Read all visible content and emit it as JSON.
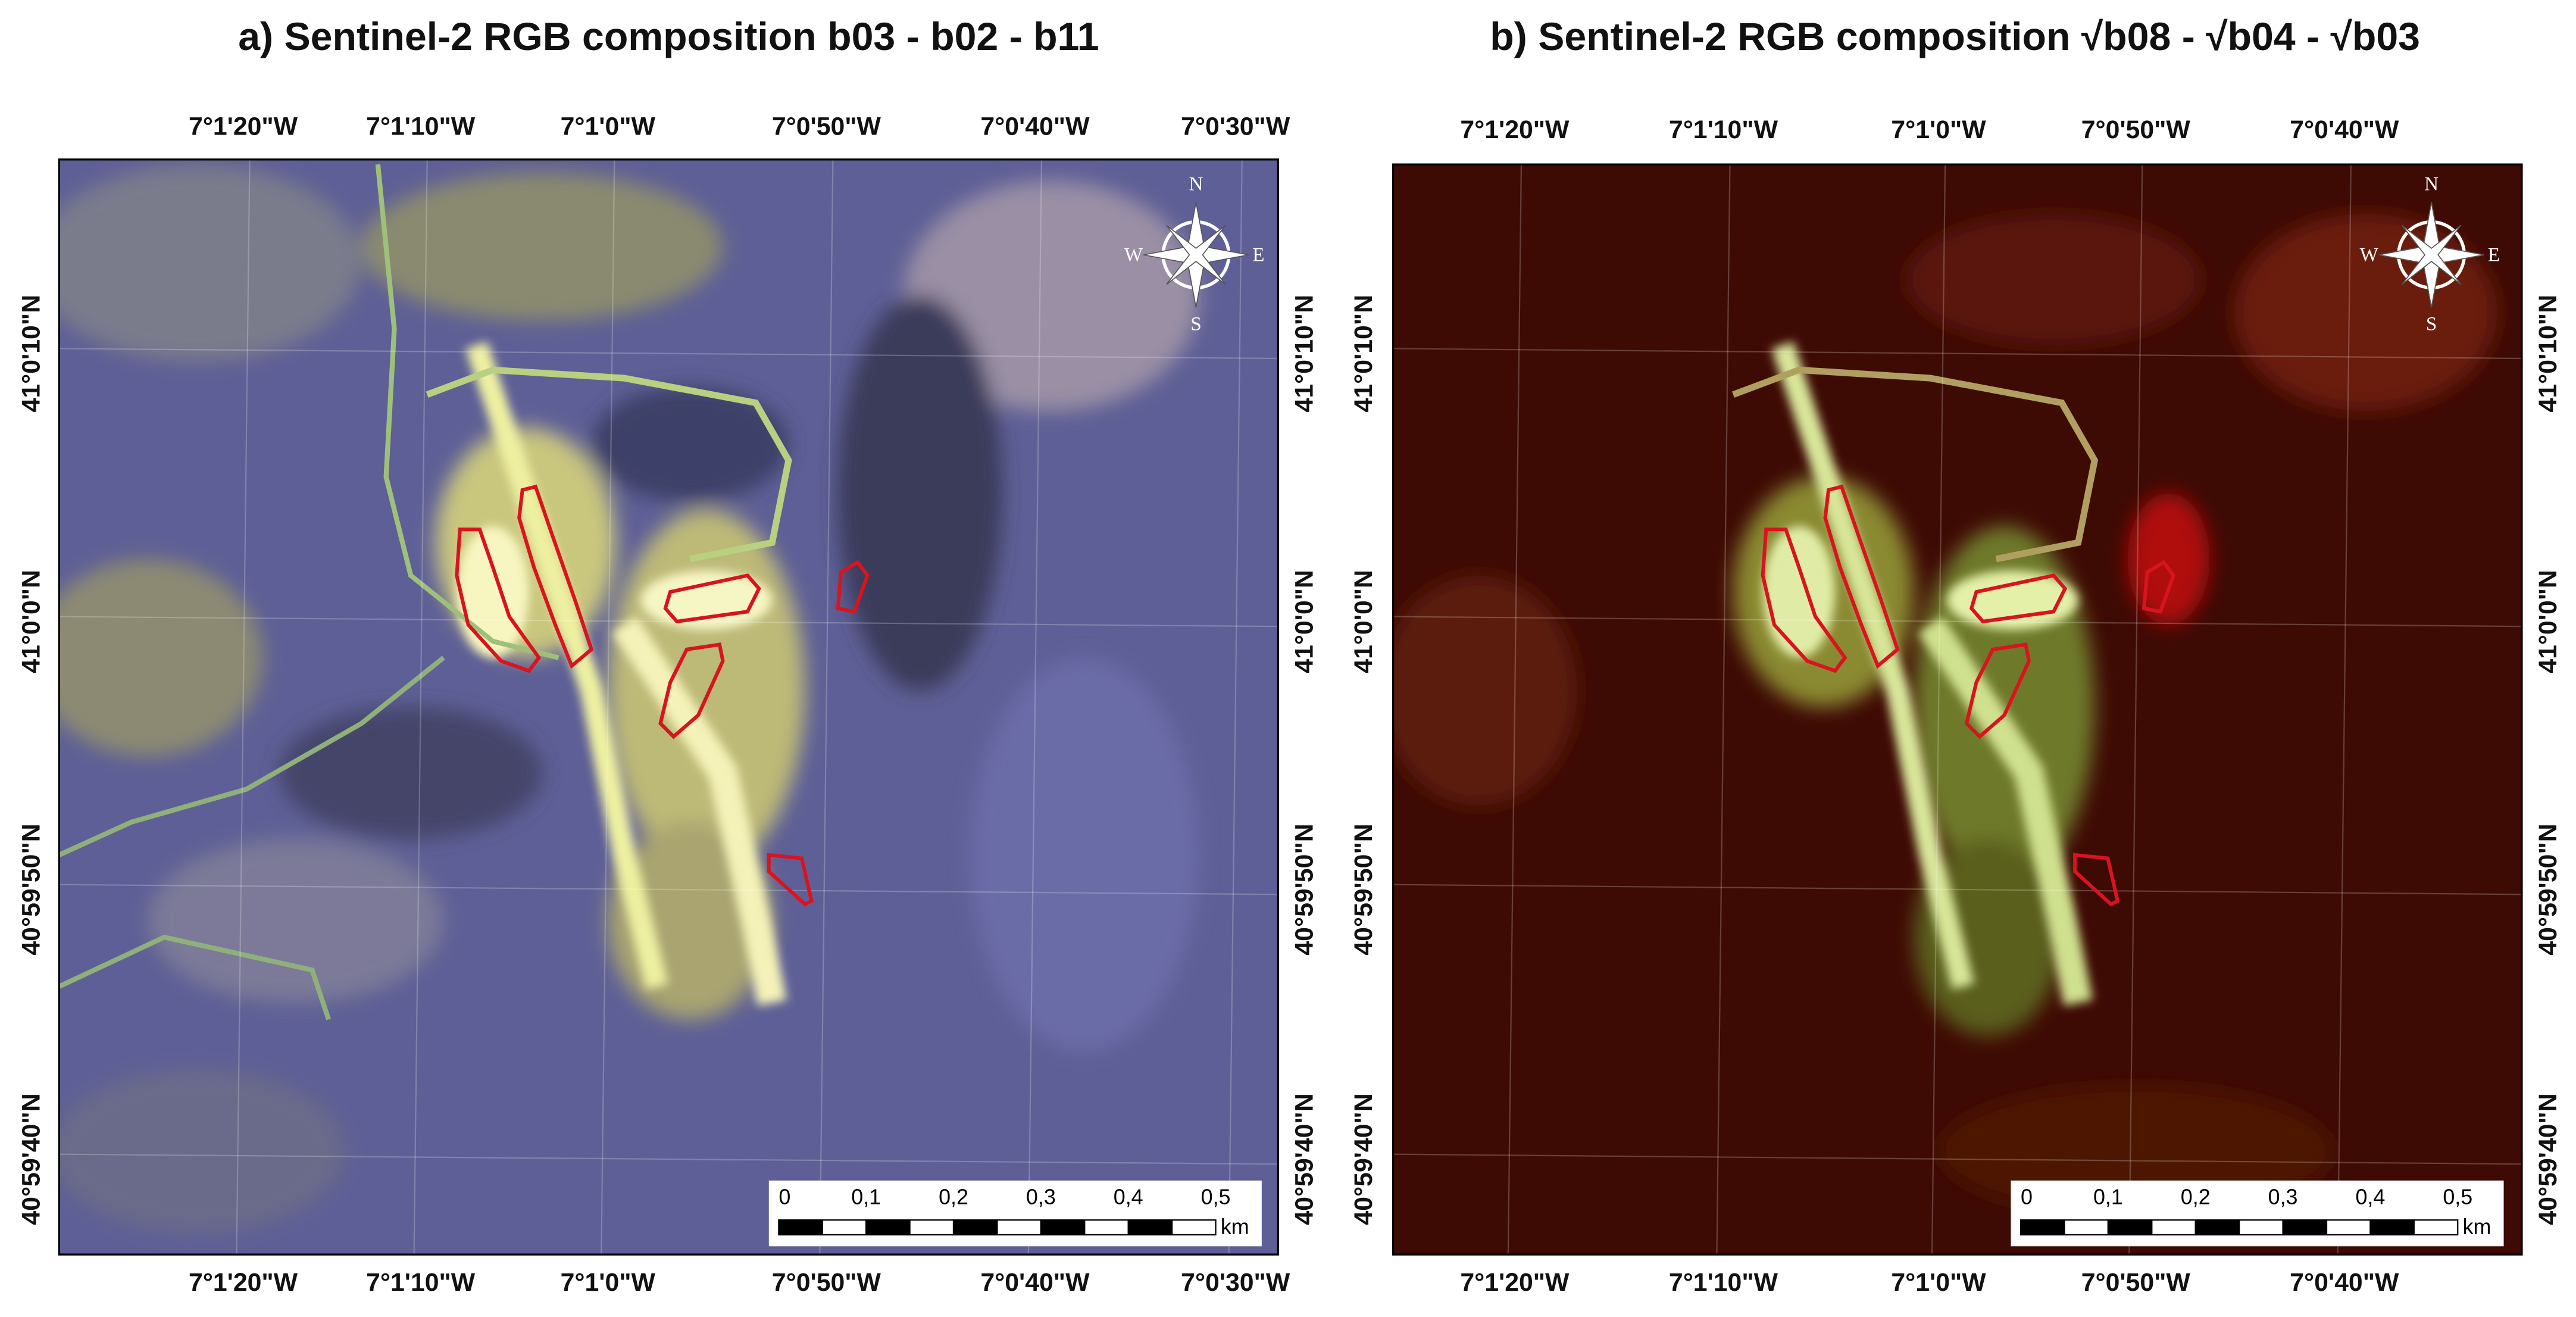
{
  "panels": [
    {
      "title": "a) Sentinel-2 RGB composition b03 - b02 - b11",
      "top_ticks": [
        "7°1'20\"W",
        "7°1'10\"W",
        "7°1'0\"W",
        "7°0'50\"W",
        "7°0'40\"W",
        "7°0'30\"W"
      ],
      "bottom_ticks": [
        "7°1'20\"W",
        "7°1'10\"W",
        "7°1'0\"W",
        "7°0'50\"W",
        "7°0'40\"W",
        "7°0'30\"W"
      ],
      "left_ticks": [
        "41°0'10\"N",
        "41°0'0\"N",
        "40°59'50\"N",
        "40°59'40\"N"
      ],
      "right_ticks": [
        "41°0'10\"N",
        "41°0'0\"N",
        "40°59'50\"N",
        "40°59'40\"N"
      ],
      "compass": {
        "n": "N",
        "s": "S",
        "e": "E",
        "w": "W"
      },
      "scale_bar": {
        "labels": [
          "0",
          "0,1",
          "0,2",
          "0,3",
          "0,4",
          "0,5"
        ],
        "unit": "km"
      }
    },
    {
      "title": "b) Sentinel-2 RGB composition √b08 - √b04 - √b03",
      "top_ticks": [
        "7°1'20\"W",
        "7°1'10\"W",
        "7°1'0\"W",
        "7°0'50\"W",
        "7°0'40\"W"
      ],
      "bottom_ticks": [
        "7°1'20\"W",
        "7°1'10\"W",
        "7°1'0\"W",
        "7°0'50\"W",
        "7°0'40\"W"
      ],
      "left_ticks": [
        "41°0'10\"N",
        "41°0'0\"N",
        "40°59'50\"N",
        "40°59'40\"N"
      ],
      "right_ticks": [
        "41°0'10\"N",
        "41°0'0\"N",
        "40°59'50\"N",
        "40°59'40\"N"
      ],
      "compass": {
        "n": "N",
        "s": "S",
        "e": "E",
        "w": "W"
      },
      "scale_bar": {
        "labels": [
          "0",
          "0,1",
          "0,2",
          "0,3",
          "0,4",
          "0,5"
        ],
        "unit": "km"
      }
    }
  ]
}
